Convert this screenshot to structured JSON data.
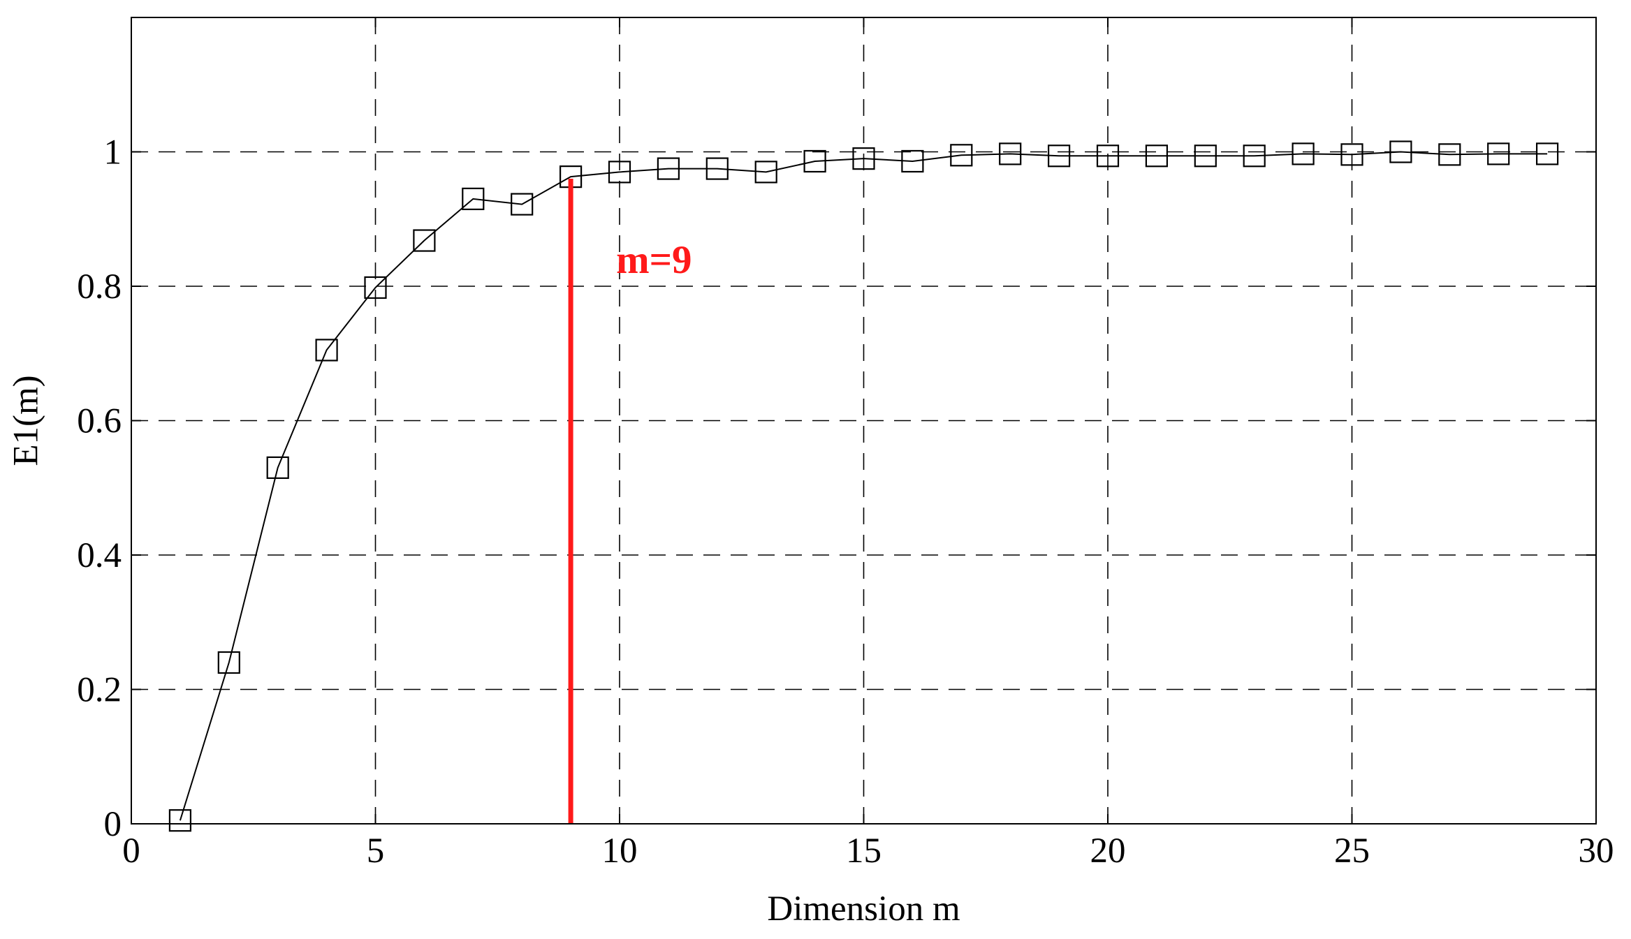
{
  "chart_data": {
    "type": "line",
    "title": "",
    "xlabel": "Dimension m",
    "ylabel": "E1(m)",
    "xlim": [
      0,
      30
    ],
    "ylim": [
      0,
      1.2
    ],
    "x_ticks": [
      0,
      5,
      10,
      15,
      20,
      25,
      30
    ],
    "x_tick_labels": [
      "0",
      "5",
      "10",
      "15",
      "20",
      "25",
      "30"
    ],
    "y_ticks": [
      0,
      0.2,
      0.4,
      0.6,
      0.8,
      1
    ],
    "y_tick_labels": [
      "0",
      "0.2",
      "0.4",
      "0.6",
      "0.8",
      "1"
    ],
    "grid": true,
    "grid_style": "dashed",
    "marker": "square",
    "line_color": "#000000",
    "series": [
      {
        "x": [
          1,
          2,
          3,
          4,
          5,
          6,
          7,
          8,
          9,
          10,
          11,
          12,
          13,
          14,
          15,
          16,
          17,
          18,
          19,
          20,
          21,
          22,
          23,
          24,
          25,
          26,
          27,
          28,
          29
        ],
        "values": [
          0.005,
          0.24,
          0.53,
          0.705,
          0.798,
          0.868,
          0.93,
          0.922,
          0.963,
          0.97,
          0.975,
          0.975,
          0.97,
          0.986,
          0.99,
          0.986,
          0.995,
          0.997,
          0.994,
          0.994,
          0.994,
          0.994,
          0.994,
          0.997,
          0.996,
          1.0,
          0.996,
          0.997,
          0.997
        ]
      }
    ],
    "annotation": {
      "text": "m=9",
      "x": 9,
      "y_top": 0.96,
      "color": "#ff1a1a"
    }
  }
}
